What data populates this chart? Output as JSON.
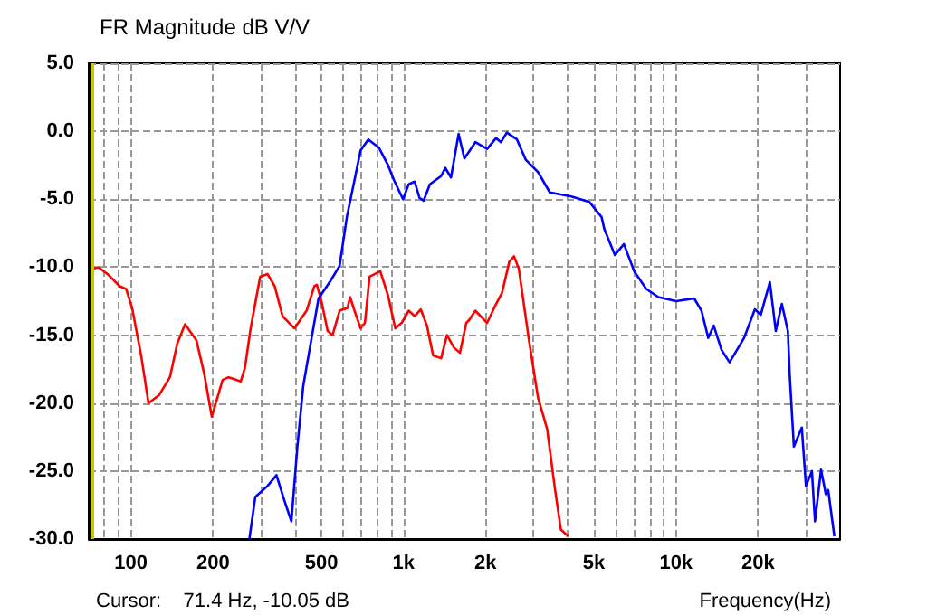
{
  "chart_data": {
    "type": "line",
    "title": "FR Magnitude dB V/V",
    "xlabel": "Frequency(Hz)",
    "annotations": [
      "Cursor:    71.4 Hz, -10.05 dB"
    ],
    "log": "x",
    "grid": true,
    "marker": "none",
    "line_style": "solid",
    "xlim": [
      70,
      40000
    ],
    "ylim": [
      -30,
      5
    ],
    "xticks": [
      {
        "value": 80,
        "label": null
      },
      {
        "value": 90,
        "label": null
      },
      100,
      200,
      {
        "value": 300,
        "label": null
      },
      {
        "value": 400,
        "label": null
      },
      500,
      {
        "value": 600,
        "label": null
      },
      {
        "value": 700,
        "label": null
      },
      {
        "value": 800,
        "label": null
      },
      {
        "value": 900,
        "label": null
      },
      {
        "value": 1000,
        "label": "1k"
      },
      {
        "value": 2000,
        "label": "2k"
      },
      {
        "value": 3000,
        "label": null
      },
      {
        "value": 4000,
        "label": null
      },
      {
        "value": 5000,
        "label": "5k"
      },
      {
        "value": 6000,
        "label": null
      },
      {
        "value": 7000,
        "label": null
      },
      {
        "value": 8000,
        "label": null
      },
      {
        "value": 9000,
        "label": null
      },
      {
        "value": 10000,
        "label": "10k"
      },
      {
        "value": 20000,
        "label": "20k"
      },
      {
        "value": 30000,
        "label": null
      }
    ],
    "yticks": [
      {
        "value": -30,
        "label": "-30.0"
      },
      {
        "value": -25,
        "label": "-25.0"
      },
      {
        "value": -20,
        "label": "-20.0"
      },
      {
        "value": -15,
        "label": "-15.0"
      },
      {
        "value": -10,
        "label": "-10.0"
      },
      {
        "value": -5,
        "label": "-5.0"
      },
      {
        "value": 0,
        "label": "0.0"
      },
      {
        "value": 5,
        "label": "5.0"
      }
    ],
    "ref_lines": [
      {
        "axis": "x",
        "value": 71.4,
        "label": null,
        "color": "#c8c800"
      }
    ],
    "series": [
      {
        "color": "#ff0000",
        "x": [
          72.6,
          76,
          82,
          91,
          96,
          101,
          109,
          116,
          127,
          139,
          148,
          158,
          174,
          186,
          198,
          217,
          228,
          253,
          262,
          275,
          298,
          317,
          337,
          360,
          398,
          441,
          471,
          481,
          500,
          527,
          549,
          583,
          623,
          637,
          661,
          696,
          722,
          751,
          822,
          878,
          933,
          985,
          1045,
          1099,
          1157,
          1219,
          1285,
          1374,
          1444,
          1530,
          1611,
          1700,
          1740,
          1835,
          2027,
          2187,
          2299,
          2445,
          2545,
          2649,
          2889,
          3117,
          3366,
          3595,
          3780,
          4020
        ],
        "values": [
          -10.1,
          -10.0,
          -10.5,
          -11.4,
          -11.6,
          -13.0,
          -16.5,
          -20.0,
          -19.4,
          -18.1,
          -15.6,
          -14.2,
          -15.4,
          -17.9,
          -21.0,
          -18.3,
          -18.1,
          -18.4,
          -17.4,
          -14.5,
          -10.7,
          -10.5,
          -11.4,
          -13.6,
          -14.5,
          -13.2,
          -11.4,
          -11.3,
          -12.5,
          -14.7,
          -15.0,
          -13.2,
          -13.0,
          -12.2,
          -13.2,
          -14.5,
          -14.1,
          -10.7,
          -10.3,
          -12.1,
          -14.5,
          -14.1,
          -13.2,
          -13.6,
          -13.1,
          -14.3,
          -16.5,
          -16.7,
          -15.0,
          -15.9,
          -16.3,
          -14.1,
          -13.9,
          -13.2,
          -14.1,
          -12.7,
          -11.9,
          -9.6,
          -9.2,
          -10.1,
          -15.4,
          -19.6,
          -21.9,
          -26.3,
          -29.3,
          -29.8
        ]
      },
      {
        "color": "#0000ff",
        "x": [
          272,
          286,
          317,
          342,
          366,
          388,
          408,
          429,
          452,
          488,
          540,
          583,
          620,
          661,
          696,
          743,
          812,
          878,
          923,
          996,
          1045,
          1099,
          1145,
          1186,
          1250,
          1374,
          1424,
          1494,
          1593,
          1673,
          1835,
          2027,
          2187,
          2279,
          2395,
          2608,
          2811,
          3117,
          3444,
          4131,
          4807,
          5329,
          5458,
          5967,
          6441,
          7025,
          7779,
          8609,
          10010,
          11660,
          12400,
          13130,
          13750,
          14700,
          15720,
          17780,
          19470,
          20460,
          22100,
          23230,
          24460,
          25730,
          26130,
          27070,
          28950,
          29980,
          31530,
          32360,
          34050,
          35470,
          36180,
          38120
        ],
        "values": [
          -30.0,
          -26.9,
          -26.1,
          -25.3,
          -27.2,
          -28.7,
          -23.2,
          -18.7,
          -16.1,
          -12.3,
          -11.0,
          -9.9,
          -6.3,
          -3.6,
          -1.4,
          -0.6,
          -1.2,
          -2.5,
          -3.6,
          -5.0,
          -3.9,
          -3.7,
          -4.9,
          -5.1,
          -3.9,
          -3.3,
          -2.7,
          -3.4,
          -0.2,
          -2.0,
          -0.8,
          -1.3,
          -0.5,
          -0.8,
          -0.1,
          -0.6,
          -2.1,
          -3.0,
          -4.5,
          -4.8,
          -5.2,
          -6.3,
          -7.2,
          -9.1,
          -8.3,
          -10.3,
          -11.6,
          -12.2,
          -12.5,
          -12.3,
          -13.2,
          -15.2,
          -14.3,
          -16.1,
          -17.0,
          -15.2,
          -13.1,
          -13.5,
          -11.1,
          -14.7,
          -12.7,
          -14.7,
          -17.9,
          -23.2,
          -21.8,
          -26.1,
          -25.0,
          -28.7,
          -24.9,
          -26.7,
          -26.4,
          -29.8
        ]
      }
    ]
  }
}
